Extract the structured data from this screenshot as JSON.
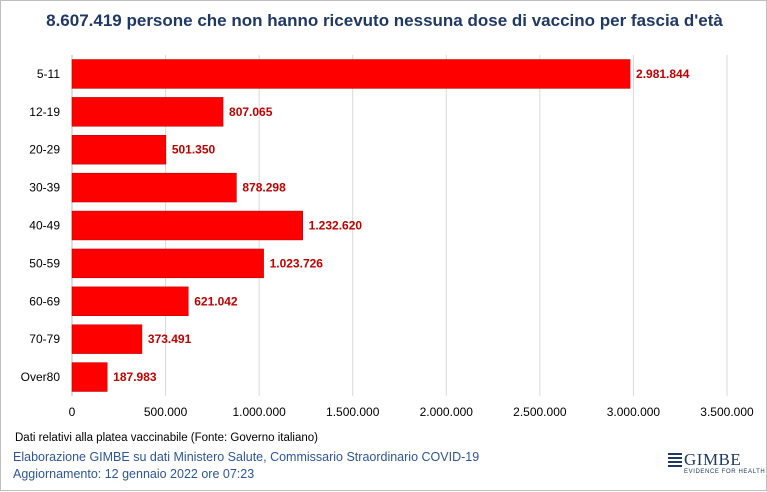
{
  "chart_data": {
    "type": "bar",
    "orientation": "horizontal",
    "title": "8.607.419 persone che non hanno ricevuto nessuna dose di vaccino per fascia d'età",
    "categories": [
      "5-11",
      "12-19",
      "20-29",
      "30-39",
      "40-49",
      "50-59",
      "60-69",
      "70-79",
      "Over80"
    ],
    "values": [
      2981844,
      807065,
      501350,
      878298,
      1232620,
      1023726,
      621042,
      373491,
      187983
    ],
    "value_labels": [
      "2.981.844",
      "807.065",
      "501.350",
      "878.298",
      "1.232.620",
      "1.023.726",
      "621.042",
      "373.491",
      "187.983"
    ],
    "xlim": [
      0,
      3500000
    ],
    "x_ticks": [
      0,
      500000,
      1000000,
      1500000,
      2000000,
      2500000,
      3000000,
      3500000
    ],
    "x_tick_labels": [
      "0",
      "500.000",
      "1.000.000",
      "1.500.000",
      "2.000.000",
      "2.500.000",
      "3.000.000",
      "3.500.000"
    ],
    "xlabel": "",
    "ylabel": "",
    "grid": "vertical",
    "legend": "none",
    "colors": {
      "bar": "#ff0000",
      "bar_edge": "#c00000",
      "value_label": "#c00000",
      "grid": "#d9d9d9",
      "title": "#1f3864"
    }
  },
  "note": "Dati relativi alla platea vaccinabile (Fonte: Governo italiano)",
  "footer": {
    "line1": "Elaborazione GIMBE su dati Ministero Salute, Commissario Straordinario COVID-19",
    "line2": "Aggiornamento: 12 gennaio 2022 ore 07:23"
  },
  "logo": {
    "word": "GIMBE",
    "tagline": "EVIDENCE FOR HEALTH"
  }
}
